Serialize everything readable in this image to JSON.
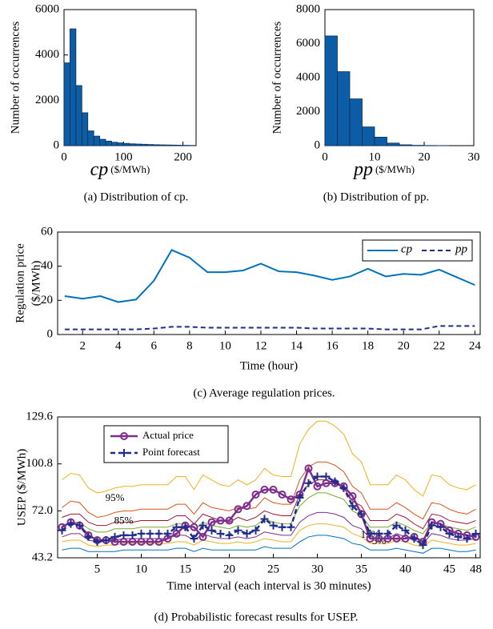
{
  "chart_data": [
    {
      "type": "histogram",
      "ylabel": "Number of occurrences",
      "xlabel_var": "cp",
      "xlabel": "($/MWh)",
      "caption": "(a) Distribution of cp.",
      "bins": [
        0,
        10,
        20,
        30,
        40,
        50,
        60,
        70,
        80,
        90,
        100,
        110,
        120,
        130,
        140,
        150,
        160,
        170,
        180,
        190,
        200,
        210,
        220
      ],
      "counts": [
        3650,
        5150,
        2650,
        1450,
        650,
        420,
        280,
        200,
        150,
        120,
        100,
        80,
        70,
        60,
        50,
        40,
        35,
        30,
        25,
        20,
        15,
        10
      ],
      "color": "#0c5da5",
      "xlim": [
        0,
        222
      ],
      "xticks": [
        0,
        100,
        200
      ],
      "ylim": [
        0,
        6000
      ],
      "yticks": [
        0,
        2000,
        4000,
        6000
      ]
    },
    {
      "type": "histogram",
      "ylabel": "Number of occurrences",
      "xlabel_var": "pp",
      "xlabel": "($/MWh)",
      "caption": "(b) Distribution of pp.",
      "bins": [
        0,
        2.5,
        5,
        7.5,
        10,
        12.5,
        15,
        17.5,
        20,
        22.5,
        25
      ],
      "counts": [
        6450,
        4350,
        2750,
        1100,
        500,
        150,
        50,
        20,
        10,
        5
      ],
      "color": "#0c5da5",
      "xlim": [
        0,
        30
      ],
      "xticks": [
        0,
        10,
        20,
        30
      ],
      "ylim": [
        0,
        8000
      ],
      "yticks": [
        0,
        2000,
        4000,
        6000,
        8000
      ]
    },
    {
      "type": "line",
      "ylabel": [
        "Regulation price",
        "($/MWh)"
      ],
      "xlabel": "Time (hour)",
      "caption": "(c) Average regulation prices.",
      "x": [
        1,
        2,
        3,
        4,
        5,
        6,
        7,
        8,
        9,
        10,
        11,
        12,
        13,
        14,
        15,
        16,
        17,
        18,
        19,
        20,
        21,
        22,
        23,
        24
      ],
      "series": [
        {
          "name": "cp",
          "color": "#0072bd",
          "linestyle": "-",
          "values": [
            22.5,
            21,
            22.5,
            19,
            20.5,
            31.5,
            49.5,
            45,
            36.5,
            36.5,
            37.5,
            41.5,
            37,
            36.5,
            34.5,
            32,
            34,
            38.5,
            34,
            35.5,
            35,
            38,
            33.5,
            29
          ]
        },
        {
          "name": "pp",
          "color": "#1f2d8a",
          "linestyle": "--",
          "values": [
            3,
            3,
            3,
            3,
            3,
            3.5,
            4.5,
            4.5,
            4,
            4,
            4,
            4,
            4,
            4,
            3.5,
            3.5,
            3.5,
            3.5,
            3,
            3,
            3,
            5,
            5,
            5
          ]
        }
      ],
      "legend": "upper right",
      "xlim": [
        0.6,
        24.3
      ],
      "xticks": [
        2,
        4,
        6,
        8,
        10,
        12,
        14,
        16,
        18,
        20,
        22,
        24
      ],
      "ylim": [
        0,
        60
      ],
      "yticks": [
        0,
        20,
        40,
        60
      ]
    },
    {
      "type": "line",
      "ylabel": "USEP ($/MWh)",
      "xlabel": "Time interval (each interval is 30 minutes)",
      "caption": "(d) Probabilistic forecast results for USEP.",
      "x": [
        1,
        2,
        3,
        4,
        5,
        6,
        7,
        8,
        9,
        10,
        11,
        12,
        13,
        14,
        15,
        16,
        17,
        18,
        19,
        20,
        21,
        22,
        23,
        24,
        25,
        26,
        27,
        28,
        29,
        30,
        31,
        32,
        33,
        34,
        35,
        36,
        37,
        38,
        39,
        40,
        41,
        42,
        43,
        44,
        45,
        46,
        47,
        48
      ],
      "series": [
        {
          "name": "Actual price",
          "color": "#7e2f8e",
          "linestyle": "-",
          "marker": "o",
          "values": [
            62,
            65,
            63,
            57,
            54,
            54,
            53,
            53,
            53,
            53,
            53,
            53,
            55,
            58,
            63,
            62,
            56,
            65,
            66,
            66,
            73,
            75,
            82,
            85,
            85,
            82,
            79,
            82,
            98,
            87,
            89,
            89,
            87,
            81,
            70,
            55,
            55,
            55,
            55,
            55,
            56,
            53,
            65,
            64,
            60,
            58,
            57,
            56
          ]
        },
        {
          "name": "Point forecast",
          "color": "#1f2d8a",
          "linestyle": "--",
          "marker": "+",
          "values": [
            60,
            64,
            63,
            56,
            53,
            54,
            56,
            57,
            57,
            58,
            58,
            58,
            58,
            62,
            62,
            55,
            63,
            60,
            58,
            57,
            60,
            58,
            60,
            67,
            63,
            62,
            62,
            80,
            89,
            93,
            93,
            90,
            86,
            75,
            70,
            58,
            58,
            58,
            63,
            60,
            55,
            51,
            63,
            62,
            58,
            56,
            55,
            58
          ]
        }
      ],
      "bands": [
        {
          "label": "95%",
          "color": "#edb120",
          "values": [
            91,
            95,
            94,
            86,
            83,
            84,
            86,
            87,
            87,
            88,
            88,
            88,
            88,
            93,
            93,
            85,
            94,
            91,
            88,
            87,
            91,
            88,
            91,
            98,
            94,
            93,
            93,
            113,
            122,
            127,
            127,
            124,
            119,
            107,
            102,
            88,
            88,
            88,
            94,
            91,
            85,
            81,
            94,
            93,
            88,
            86,
            85,
            88
          ]
        },
        {
          "label": "85%",
          "color": "#d95319",
          "values": [
            74,
            78,
            77,
            71,
            68,
            69,
            71,
            72,
            72,
            73,
            73,
            73,
            73,
            76,
            76,
            70,
            77,
            74,
            73,
            72,
            74,
            73,
            74,
            80,
            77,
            76,
            76,
            91,
            99,
            102,
            102,
            100,
            96,
            87,
            83,
            73,
            73,
            73,
            77,
            74,
            70,
            67,
            77,
            76,
            73,
            71,
            70,
            73
          ]
        },
        {
          "color": "#a2142f",
          "values": [
            68,
            70,
            70,
            65,
            63,
            63,
            65,
            65,
            65,
            66,
            66,
            66,
            66,
            69,
            69,
            64,
            70,
            68,
            66,
            65,
            68,
            66,
            68,
            72,
            70,
            69,
            69,
            82,
            88,
            91,
            91,
            89,
            86,
            78,
            75,
            66,
            66,
            66,
            70,
            68,
            64,
            61,
            70,
            69,
            66,
            65,
            64,
            66
          ]
        },
        {
          "color": "#77ac30",
          "values": [
            63,
            65,
            65,
            61,
            59,
            59,
            61,
            61,
            61,
            62,
            62,
            62,
            62,
            64,
            64,
            60,
            65,
            63,
            62,
            61,
            63,
            62,
            63,
            67,
            65,
            64,
            64,
            75,
            80,
            83,
            83,
            81,
            79,
            72,
            69,
            62,
            62,
            62,
            65,
            63,
            60,
            58,
            65,
            64,
            62,
            61,
            60,
            62
          ]
        },
        {
          "color": "#7e2f8e",
          "values": [
            56,
            58,
            58,
            54,
            53,
            54,
            54,
            55,
            55,
            55,
            55,
            55,
            55,
            57,
            57,
            54,
            58,
            56,
            55,
            55,
            56,
            55,
            56,
            59,
            58,
            57,
            57,
            65,
            69,
            71,
            71,
            70,
            68,
            63,
            61,
            55,
            55,
            55,
            58,
            56,
            54,
            52,
            58,
            57,
            55,
            54,
            54,
            55
          ]
        },
        {
          "label": "15%",
          "color": "#edb120",
          "values": [
            53,
            54,
            54,
            51,
            50,
            51,
            51,
            52,
            52,
            52,
            52,
            52,
            52,
            53,
            53,
            51,
            54,
            53,
            52,
            52,
            53,
            52,
            53,
            55,
            54,
            53,
            53,
            60,
            63,
            64,
            64,
            63,
            62,
            58,
            56,
            52,
            52,
            52,
            54,
            53,
            51,
            50,
            54,
            53,
            52,
            51,
            51,
            52
          ]
        },
        {
          "label": "5%",
          "color": "#0072bd",
          "values": [
            48,
            49,
            49,
            47,
            47,
            47,
            47,
            48,
            48,
            48,
            48,
            48,
            48,
            49,
            49,
            47,
            49,
            48,
            48,
            48,
            48,
            48,
            48,
            50,
            49,
            49,
            49,
            53,
            56,
            57,
            57,
            56,
            55,
            52,
            51,
            48,
            48,
            48,
            49,
            48,
            47,
            46,
            49,
            49,
            48,
            47,
            47,
            48
          ]
        }
      ],
      "legend": "upper left",
      "xlim": [
        0.5,
        48.5
      ],
      "xticks": [
        5,
        10,
        15,
        20,
        25,
        30,
        35,
        40,
        45,
        48
      ],
      "ylim": [
        43.2,
        129.6
      ],
      "yticks": [
        43.2,
        {
          "value": 72,
          "label": "72.0"
        },
        100.8,
        129.6
      ]
    }
  ]
}
